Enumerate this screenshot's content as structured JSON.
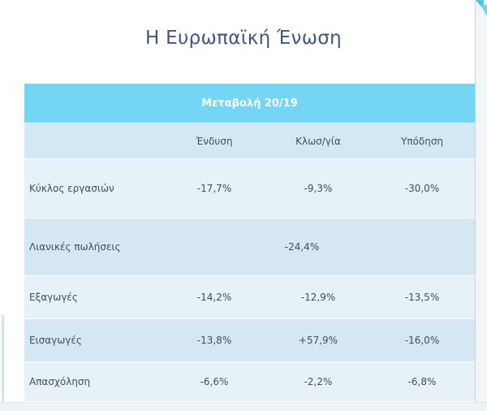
{
  "slide": {
    "title": "Η Ευρωπαϊκή Ένωση"
  },
  "table": {
    "band_title": "Μεταβολή 20/19",
    "columns": [
      "Ένδυση",
      "Κλωσ/γία",
      "Υπόδηση"
    ],
    "rows": [
      {
        "label": "Κύκλος εργασιών",
        "values": [
          "-17,7%",
          "-9,3%",
          "-30,0%"
        ]
      },
      {
        "label": "Λιανικές πωλήσεις",
        "values": [
          "",
          "-24,4%",
          ""
        ]
      },
      {
        "label": "Εξαγωγές",
        "values": [
          "-14,2%",
          "-12,9%",
          "-13,5%"
        ]
      },
      {
        "label": "Εισαγωγές",
        "values": [
          "-13,8%",
          "+57,9%",
          "-16,0%"
        ]
      },
      {
        "label": "Απασχόληση",
        "values": [
          "-6,6%",
          "-2,2%",
          "-6,8%"
        ]
      }
    ]
  },
  "colors": {
    "title": "#3e5586",
    "band": "#75d5f5",
    "header_row": "#d2e9f5",
    "row_a": "#e7f1f8",
    "row_b": "#d4e7f2",
    "accent": "#49c7e8"
  }
}
